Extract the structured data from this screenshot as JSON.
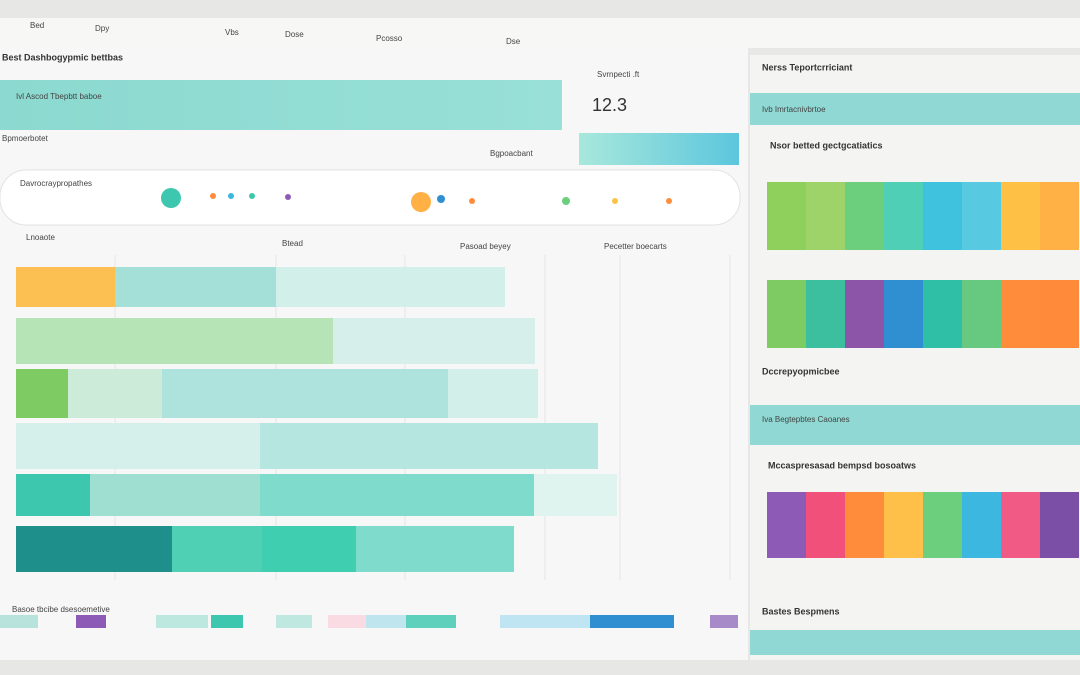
{
  "header": {
    "title": "Best Dashbogypmic bettbas",
    "menu": [
      "Bed",
      "Dpy",
      "Vbs",
      "Dose",
      "Pcosso",
      "Dse"
    ]
  },
  "summary": {
    "label": "Svrnpecti .ft",
    "value": "12.3",
    "caption": "Bgpoacbant",
    "bar_label": "Ivl Ascod Tbepbtt baboe"
  },
  "filters": {
    "title": "Bpmoerbotet",
    "row_label": "Davrocraypropathes"
  },
  "chart": {
    "title": "Lnoaote",
    "headers": [
      "Btead",
      "Pasoad beyey",
      "Pecetter boecarts"
    ]
  },
  "legend": {
    "title": "Basoe tbcibe dsesoemetive"
  },
  "side": {
    "title": "Nerss Teportcrriciant",
    "strip_1": "Ivb Imrtacnivbrtoe",
    "section_1": "Nsor betted gectgcatiatics",
    "section_2": "Dccrepyopmicbee",
    "strip_2": "Iva Begtepbtes Caoanes",
    "section_3": "Mccaspresasad bempsd bosoatws",
    "section_4": "Bastes Bespmens"
  }
}
